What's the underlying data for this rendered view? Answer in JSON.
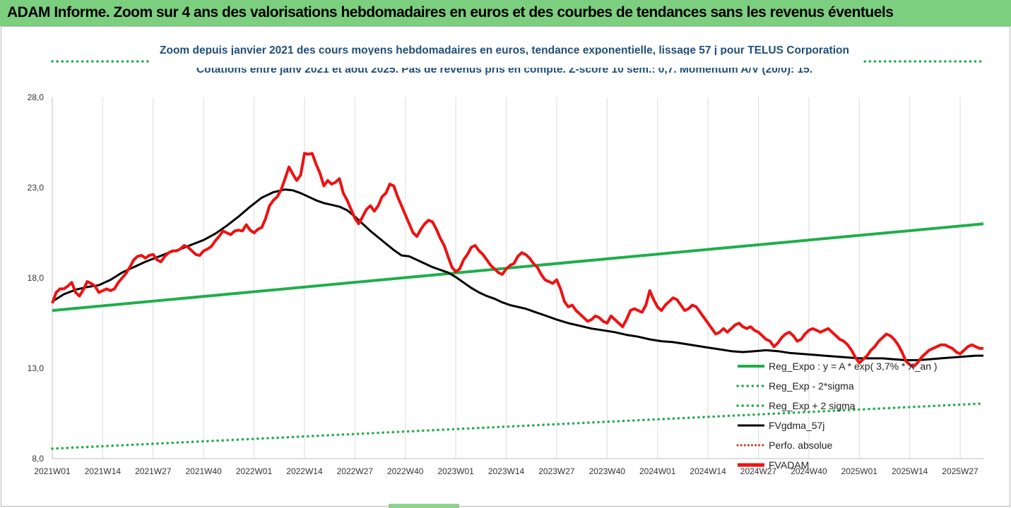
{
  "header": {
    "title": "ADAM Informe. Zoom sur 4 ans des valorisations hebdomadaires en euros et des courbes de tendances sans les revenus éventuels"
  },
  "colors": {
    "header_bg": "#7ccf7f",
    "title_blue": "#1f4e79",
    "reg_green": "#1fae4b",
    "fvgdma": "#000000",
    "fvadam": "#ee1111",
    "perf_dotted": "#c0392b"
  },
  "chart_data": {
    "type": "line",
    "title": "Zoom depuis janvier 2021 des cours moyens hebdomadaires en euros, tendance exponentielle, lissage 57 j pour TELUS Corporation",
    "subtitle": "Cotations entre janv 2021 et août 2025.  Pas de revenus pris en compte. Z-score 10 sem.: 0,7. Momentum A/V (20/0): 15.",
    "xlabel": "",
    "ylabel": "",
    "ylim": [
      8.0,
      28.0
    ],
    "y_ticks": [
      "28,0",
      "23,0",
      "18,0",
      "13,0",
      "8,0"
    ],
    "y_tick_values": [
      28,
      23,
      18,
      13,
      8
    ],
    "x_range": [
      0,
      240
    ],
    "x_ticks": [
      "2021W01",
      "2021W14",
      "2021W27",
      "2021W40",
      "2022W01",
      "2022W14",
      "2022W27",
      "2022W40",
      "2023W01",
      "2023W14",
      "2023W27",
      "2023W40",
      "2024W01",
      "2024W14",
      "2024W27",
      "2024W40",
      "2025W01",
      "2025W14",
      "2025W27"
    ],
    "x_tick_weeks": [
      0,
      13,
      26,
      39,
      52,
      65,
      78,
      91,
      104,
      117,
      130,
      143,
      156,
      169,
      182,
      195,
      208,
      221,
      234
    ],
    "grid": "vertical",
    "legend_position": "bottom-right",
    "series": [
      {
        "name": "Reg_Expo : y = A * exp( 3,7% *  X_an )",
        "key": "reg",
        "style": "solid",
        "x": [
          0,
          240
        ],
        "values": [
          16.2,
          21.0
        ]
      },
      {
        "name": "Reg_Exp - 2*sigma",
        "key": "reg_minus",
        "style": "dotted",
        "x": [
          0,
          240
        ],
        "values": [
          8.55,
          11.05
        ]
      },
      {
        "name": "Reg_Exp + 2 sigma",
        "key": "reg_plus",
        "style": "dotted",
        "x": [
          0,
          26,
          198,
          240
        ],
        "values": [
          30.15,
          30.15,
          30.15,
          30.15
        ]
      },
      {
        "name": "FVgdma_57j",
        "key": "fvgdma",
        "style": "solid",
        "x": [
          0,
          3,
          6,
          9,
          12,
          15,
          18,
          21,
          24,
          27,
          30,
          33,
          36,
          39,
          42,
          45,
          48,
          51,
          54,
          57,
          60,
          62,
          64,
          66,
          68,
          70,
          72,
          74,
          76,
          78,
          80,
          82,
          84,
          86,
          88,
          90,
          92,
          94,
          96,
          98,
          100,
          102,
          104,
          106,
          108,
          110,
          112,
          114,
          116,
          118,
          120,
          122,
          124,
          126,
          128,
          130,
          133,
          136,
          139,
          142,
          145,
          148,
          151,
          154,
          157,
          160,
          163,
          166,
          169,
          172,
          175,
          178,
          181,
          184,
          187,
          190,
          193,
          196,
          199,
          202,
          205,
          208,
          211,
          214,
          217,
          220,
          223,
          226,
          229,
          232,
          235,
          238,
          240
        ],
        "values": [
          16.7,
          17.1,
          17.35,
          17.5,
          17.6,
          17.9,
          18.3,
          18.6,
          18.9,
          19.15,
          19.4,
          19.6,
          19.85,
          20.1,
          20.45,
          20.9,
          21.4,
          21.95,
          22.45,
          22.75,
          22.9,
          22.85,
          22.7,
          22.5,
          22.3,
          22.15,
          22.05,
          21.95,
          21.75,
          21.4,
          21.0,
          20.6,
          20.25,
          19.9,
          19.55,
          19.25,
          19.2,
          19.0,
          18.8,
          18.6,
          18.45,
          18.3,
          18.05,
          17.75,
          17.45,
          17.2,
          17.0,
          16.85,
          16.65,
          16.5,
          16.4,
          16.3,
          16.15,
          16.0,
          15.85,
          15.7,
          15.5,
          15.35,
          15.2,
          15.1,
          15.0,
          14.85,
          14.75,
          14.6,
          14.5,
          14.45,
          14.35,
          14.25,
          14.15,
          14.05,
          13.95,
          13.9,
          13.95,
          14.0,
          13.95,
          13.85,
          13.8,
          13.75,
          13.7,
          13.65,
          13.6,
          13.55,
          13.55,
          13.55,
          13.5,
          13.45,
          13.45,
          13.5,
          13.55,
          13.6,
          13.65,
          13.7,
          13.7
        ]
      },
      {
        "name": "Perfo. absolue",
        "key": "perfo",
        "style": "dotted",
        "x": [],
        "values": []
      },
      {
        "name": "FVADAM",
        "key": "fvadam",
        "style": "solid",
        "x": [
          0,
          1,
          2,
          3,
          4,
          5,
          6,
          7,
          8,
          9,
          10,
          11,
          12,
          13,
          14,
          15,
          16,
          17,
          18,
          19,
          20,
          21,
          22,
          23,
          24,
          25,
          26,
          27,
          28,
          29,
          30,
          31,
          32,
          33,
          34,
          35,
          36,
          37,
          38,
          39,
          40,
          41,
          42,
          43,
          44,
          45,
          46,
          47,
          48,
          49,
          50,
          51,
          52,
          53,
          54,
          55,
          56,
          57,
          58,
          59,
          60,
          61,
          62,
          63,
          64,
          65,
          66,
          67,
          68,
          69,
          70,
          71,
          72,
          73,
          74,
          75,
          76,
          77,
          78,
          79,
          80,
          81,
          82,
          83,
          84,
          85,
          86,
          87,
          88,
          89,
          90,
          91,
          92,
          93,
          94,
          95,
          96,
          97,
          98,
          99,
          100,
          101,
          102,
          103,
          104,
          105,
          106,
          107,
          108,
          109,
          110,
          111,
          112,
          113,
          114,
          115,
          116,
          117,
          118,
          119,
          120,
          121,
          122,
          123,
          124,
          125,
          126,
          127,
          128,
          129,
          130,
          131,
          132,
          133,
          134,
          135,
          136,
          137,
          138,
          139,
          140,
          141,
          142,
          143,
          144,
          145,
          146,
          147,
          148,
          149,
          150,
          151,
          152,
          153,
          154,
          155,
          156,
          157,
          158,
          159,
          160,
          161,
          162,
          163,
          164,
          165,
          166,
          167,
          168,
          169,
          170,
          171,
          172,
          173,
          174,
          175,
          176,
          177,
          178,
          179,
          180,
          181,
          182,
          183,
          184,
          185,
          186,
          187,
          188,
          189,
          190,
          191,
          192,
          193,
          194,
          195,
          196,
          197,
          198,
          199,
          200,
          201,
          202,
          203,
          204,
          205,
          206,
          207,
          208,
          209,
          210,
          211,
          212,
          213,
          214,
          215,
          216,
          217,
          218,
          219,
          220,
          221,
          222,
          223,
          224,
          225,
          226,
          227,
          228,
          229,
          230,
          231,
          232,
          233,
          234,
          235,
          236,
          237,
          238,
          239,
          240
        ],
        "values": [
          16.6,
          17.2,
          17.4,
          17.4,
          17.55,
          17.75,
          17.2,
          17.0,
          17.35,
          17.8,
          17.7,
          17.55,
          17.2,
          17.3,
          17.4,
          17.3,
          17.4,
          17.75,
          18.0,
          18.25,
          18.6,
          19.0,
          19.2,
          19.25,
          19.1,
          19.25,
          19.3,
          19.0,
          18.9,
          19.2,
          19.4,
          19.5,
          19.5,
          19.6,
          19.8,
          19.7,
          19.5,
          19.3,
          19.25,
          19.5,
          19.6,
          19.75,
          20.05,
          20.3,
          20.6,
          20.5,
          20.4,
          20.6,
          20.65,
          20.6,
          20.95,
          20.65,
          20.5,
          20.7,
          20.8,
          21.3,
          22.0,
          22.3,
          22.5,
          22.9,
          23.5,
          24.15,
          23.75,
          23.4,
          23.7,
          24.9,
          24.85,
          24.9,
          24.3,
          23.8,
          23.1,
          23.4,
          23.2,
          23.3,
          23.5,
          22.7,
          22.3,
          21.8,
          21.3,
          21.0,
          21.4,
          21.8,
          22.0,
          21.7,
          22.0,
          22.5,
          22.7,
          23.2,
          23.1,
          22.5,
          22.0,
          21.5,
          21.0,
          20.5,
          20.3,
          20.7,
          21.0,
          21.2,
          21.1,
          20.7,
          20.2,
          19.8,
          19.2,
          18.6,
          18.35,
          18.5,
          19.0,
          19.3,
          19.7,
          19.8,
          19.5,
          19.3,
          19.0,
          18.7,
          18.5,
          18.3,
          18.2,
          18.5,
          18.7,
          18.8,
          19.2,
          19.4,
          19.3,
          19.1,
          18.8,
          18.6,
          18.2,
          17.9,
          17.8,
          17.7,
          17.9,
          17.4,
          16.7,
          16.4,
          16.5,
          16.2,
          16.0,
          15.8,
          15.6,
          15.7,
          15.9,
          15.8,
          15.6,
          15.5,
          15.9,
          15.7,
          15.5,
          15.3,
          15.7,
          16.2,
          16.3,
          16.2,
          16.1,
          16.5,
          17.3,
          16.8,
          16.4,
          16.2,
          16.5,
          16.7,
          16.9,
          16.8,
          16.5,
          16.2,
          16.3,
          16.5,
          16.4,
          16.1,
          15.8,
          15.5,
          15.2,
          14.9,
          15.0,
          15.2,
          15.0,
          15.2,
          15.4,
          15.5,
          15.3,
          15.2,
          15.3,
          15.1,
          15.0,
          14.8,
          14.6,
          14.5,
          14.2,
          14.4,
          14.7,
          14.9,
          15.0,
          14.8,
          14.5,
          14.6,
          14.9,
          15.1,
          15.2,
          15.1,
          15.0,
          15.1,
          15.2,
          15.0,
          14.8,
          14.6,
          14.5,
          14.3,
          14.0,
          13.6,
          13.3,
          13.5,
          13.7,
          14.0,
          14.2,
          14.5,
          14.7,
          14.9,
          14.8,
          14.6,
          14.3,
          13.9,
          13.4,
          13.2,
          13.1,
          13.3,
          13.6,
          13.8,
          14.0,
          14.1,
          14.2,
          14.3,
          14.3,
          14.2,
          14.1,
          13.9,
          13.8,
          14.0,
          14.2,
          14.3,
          14.2,
          14.1,
          14.1
        ]
      }
    ]
  }
}
